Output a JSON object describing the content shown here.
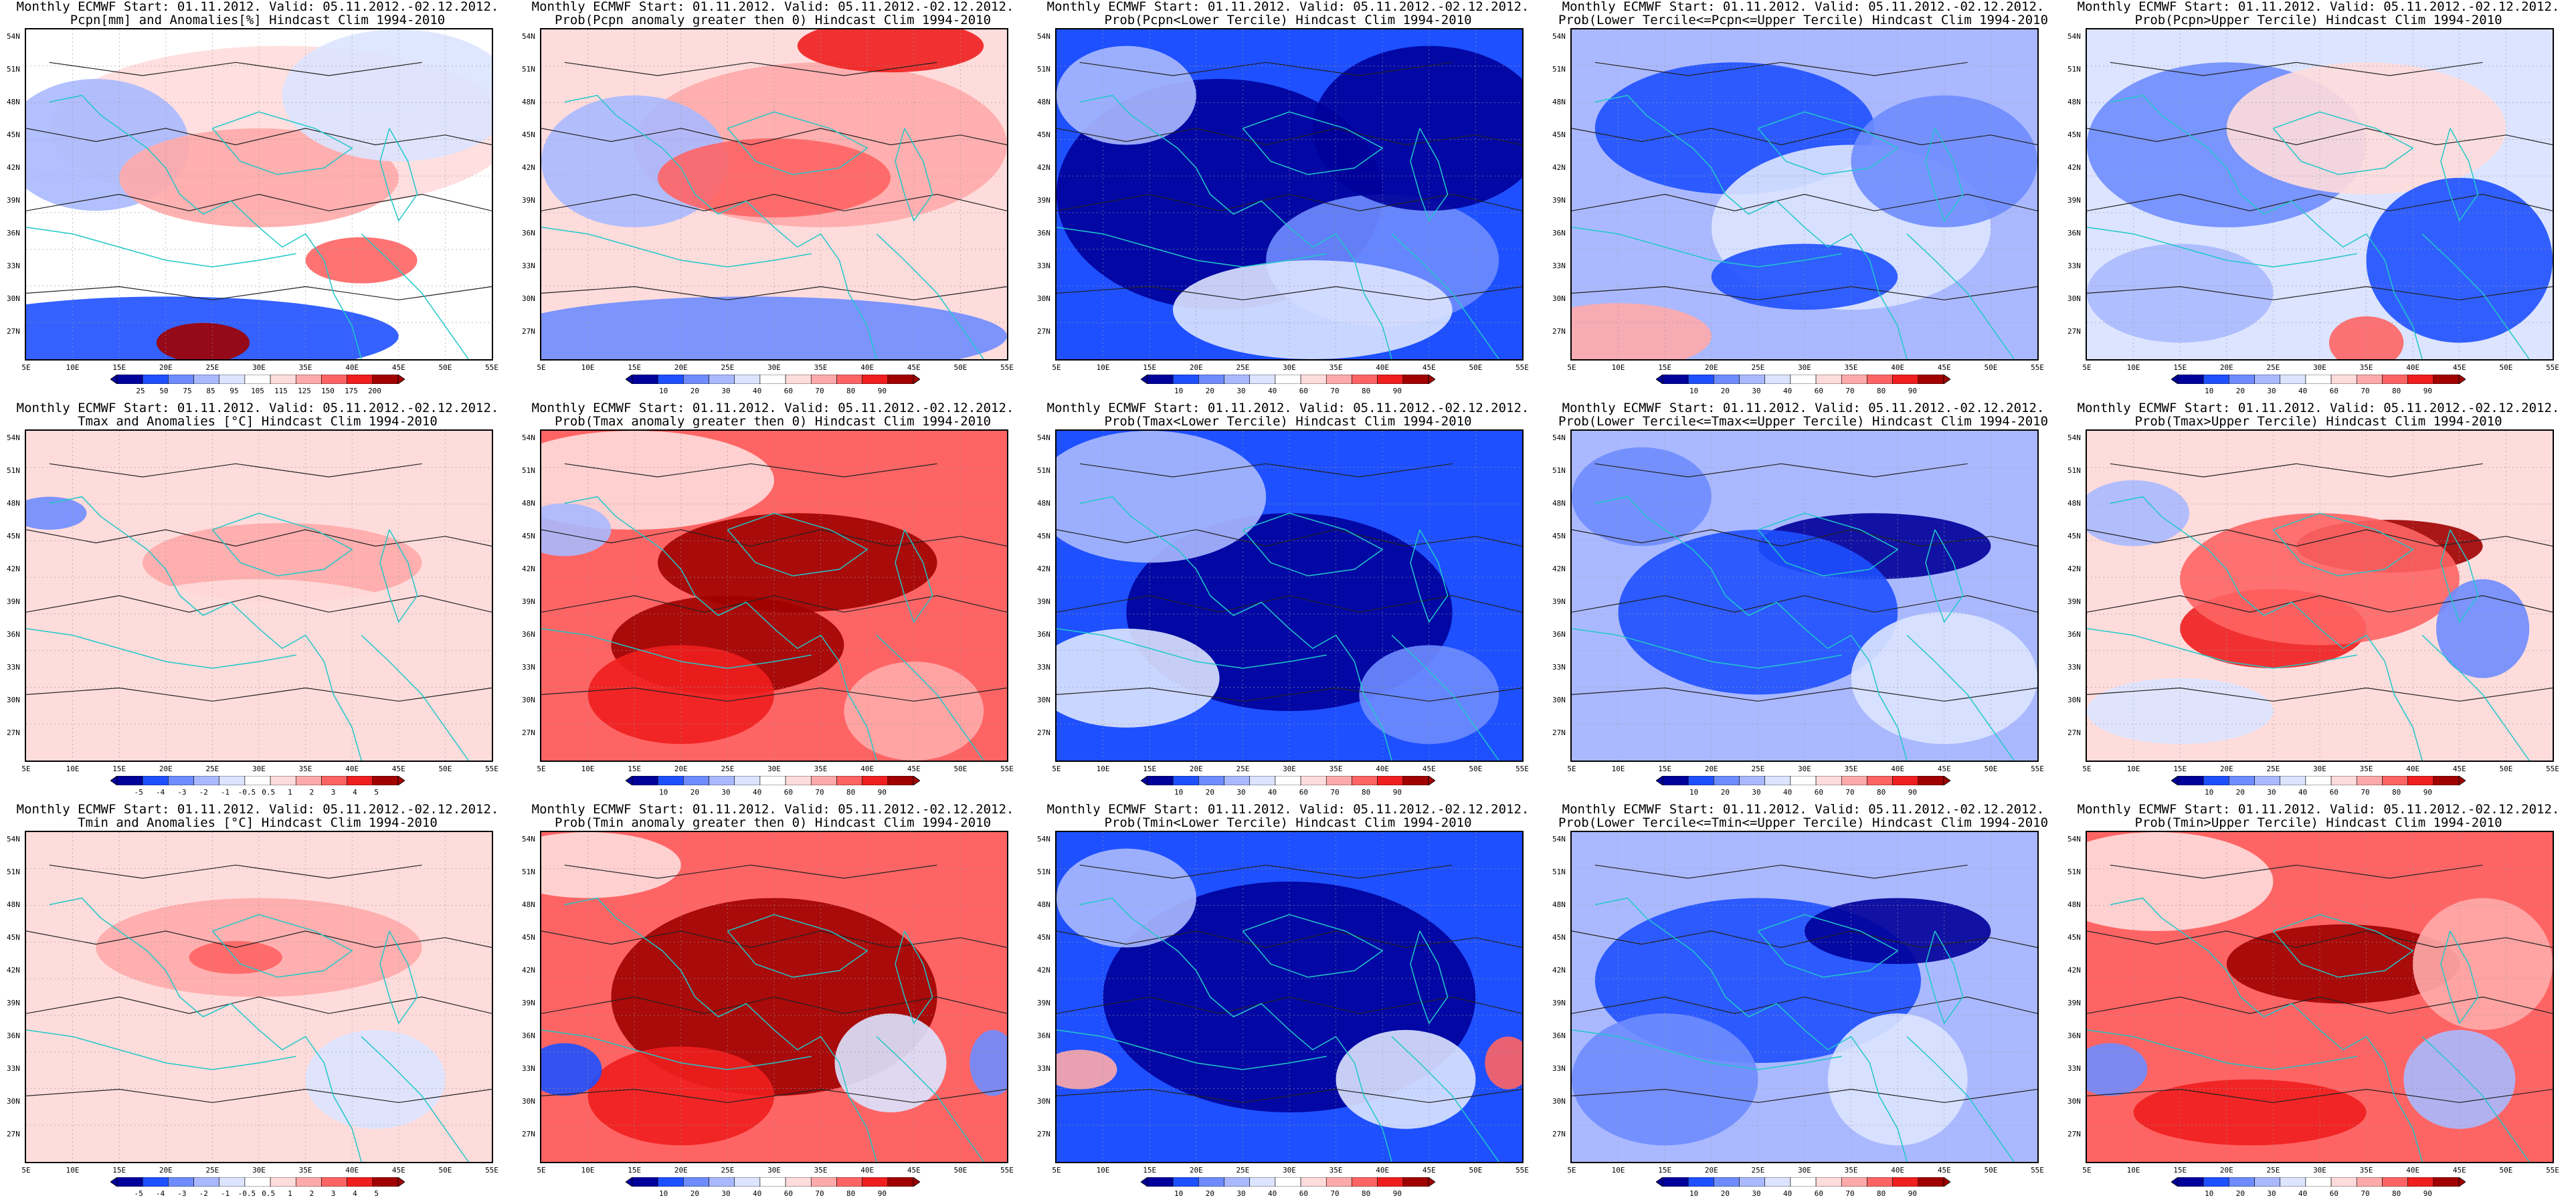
{
  "lat_labels": [
    "54N",
    "51N",
    "48N",
    "45N",
    "42N",
    "39N",
    "36N",
    "33N",
    "30N",
    "27N"
  ],
  "lon_labels": [
    "5E",
    "10E",
    "15E",
    "20E",
    "25E",
    "30E",
    "35E",
    "40E",
    "45E",
    "50E",
    "55E"
  ],
  "colorbars": {
    "pcpn": {
      "colors": [
        "#00009a",
        "#1e50ff",
        "#6e8cff",
        "#aab9ff",
        "#dce4ff",
        "#ffffff",
        "#ffdcdc",
        "#ffaaaa",
        "#ff6464",
        "#f01e1e",
        "#a00000"
      ],
      "labels": [
        "25",
        "50",
        "75",
        "85",
        "95",
        "105",
        "115",
        "125",
        "150",
        "175",
        "200"
      ]
    },
    "anom": {
      "colors": [
        "#00009a",
        "#1e50ff",
        "#6e8cff",
        "#aab9ff",
        "#dce4ff",
        "#ffffff",
        "#ffdcdc",
        "#ffaaaa",
        "#ff6464",
        "#f01e1e",
        "#a00000"
      ],
      "labels": [
        "-5",
        "-4",
        "-3",
        "-2",
        "-1",
        "-0.5",
        "0.5",
        "1",
        "2",
        "3",
        "4",
        "5"
      ]
    },
    "prob": {
      "colors": [
        "#00009a",
        "#1e50ff",
        "#6e8cff",
        "#aab9ff",
        "#dce4ff",
        "#ffffff",
        "#ffdcdc",
        "#ffaaaa",
        "#ff6464",
        "#f01e1e",
        "#a00000"
      ],
      "labels": [
        "10",
        "20",
        "30",
        "40",
        "60",
        "70",
        "80",
        "90"
      ]
    }
  },
  "panels": [
    {
      "title1": "Monthly ECMWF Start: 01.11.2012. Valid: 05.11.2012.-02.12.2012.",
      "title2": "Pcpn[mm] and Anomalies[%] Hindcast Clim 1994-2010",
      "scheme": "pcpn_anom",
      "cbar": "pcpn"
    },
    {
      "title1": "Monthly ECMWF Start: 01.11.2012. Valid: 05.11.2012.-02.12.2012.",
      "title2": "Prob(Pcpn anomaly greater then 0) Hindcast Clim 1994-2010",
      "scheme": "pcpn_pos",
      "cbar": "prob"
    },
    {
      "title1": "Monthly ECMWF Start: 01.11.2012. Valid: 05.11.2012.-02.12.2012.",
      "title2": "Prob(Pcpn<Lower Tercile) Hindcast Clim 1994-2010",
      "scheme": "pcpn_low",
      "cbar": "prob"
    },
    {
      "title1": "Monthly ECMWF Start: 01.11.2012. Valid: 05.11.2012.-02.12.2012.",
      "title2": "Prob(Lower Tercile<=Pcpn<=Upper Tercile) Hindcast Clim 1994-2010",
      "scheme": "pcpn_mid",
      "cbar": "prob"
    },
    {
      "title1": "Monthly ECMWF Start: 01.11.2012. Valid: 05.11.2012.-02.12.2012.",
      "title2": "Prob(Pcpn>Upper Tercile) Hindcast Clim 1994-2010",
      "scheme": "pcpn_up",
      "cbar": "prob"
    },
    {
      "title1": "Monthly ECMWF Start: 01.11.2012. Valid: 05.11.2012.-02.12.2012.",
      "title2": "Tmax and Anomalies [°C] Hindcast Clim 1994-2010",
      "scheme": "tmax_anom",
      "cbar": "anom"
    },
    {
      "title1": "Monthly ECMWF Start: 01.11.2012. Valid: 05.11.2012.-02.12.2012.",
      "title2": "Prob(Tmax anomaly greater then 0) Hindcast Clim 1994-2010",
      "scheme": "tmax_pos",
      "cbar": "prob"
    },
    {
      "title1": "Monthly ECMWF Start: 01.11.2012. Valid: 05.11.2012.-02.12.2012.",
      "title2": "Prob(Tmax<Lower Tercile) Hindcast Clim 1994-2010",
      "scheme": "tmax_low",
      "cbar": "prob"
    },
    {
      "title1": "Monthly ECMWF Start: 01.11.2012. Valid: 05.11.2012.-02.12.2012.",
      "title2": "Prob(Lower Tercile<=Tmax<=Upper Tercile) Hindcast Clim 1994-2010",
      "scheme": "tmax_mid",
      "cbar": "prob"
    },
    {
      "title1": "Monthly ECMWF Start: 01.11.2012. Valid: 05.11.2012.-02.12.2012.",
      "title2": "Prob(Tmax>Upper Tercile) Hindcast Clim 1994-2010",
      "scheme": "tmax_up",
      "cbar": "prob"
    },
    {
      "title1": "Monthly ECMWF Start: 01.11.2012. Valid: 05.11.2012.-02.12.2012.",
      "title2": "Tmin and Anomalies [°C] Hindcast Clim 1994-2010",
      "scheme": "tmin_anom",
      "cbar": "anom"
    },
    {
      "title1": "Monthly ECMWF Start: 01.11.2012. Valid: 05.11.2012.-02.12.2012.",
      "title2": "Prob(Tmin anomaly greater then 0) Hindcast Clim 1994-2010",
      "scheme": "tmin_pos",
      "cbar": "prob"
    },
    {
      "title1": "Monthly ECMWF Start: 01.11.2012. Valid: 05.11.2012.-02.12.2012.",
      "title2": "Prob(Tmin<Lower Tercile) Hindcast Clim 1994-2010",
      "scheme": "tmin_low",
      "cbar": "prob"
    },
    {
      "title1": "Monthly ECMWF Start: 01.11.2012. Valid: 05.11.2012.-02.12.2012.",
      "title2": "Prob(Lower Tercile<=Tmin<=Upper Tercile) Hindcast Clim 1994-2010",
      "scheme": "tmin_mid",
      "cbar": "prob"
    },
    {
      "title1": "Monthly ECMWF Start: 01.11.2012. Valid: 05.11.2012.-02.12.2012.",
      "title2": "Prob(Tmin>Upper Tercile) Hindcast Clim 1994-2010",
      "scheme": "tmin_up",
      "cbar": "prob"
    }
  ]
}
